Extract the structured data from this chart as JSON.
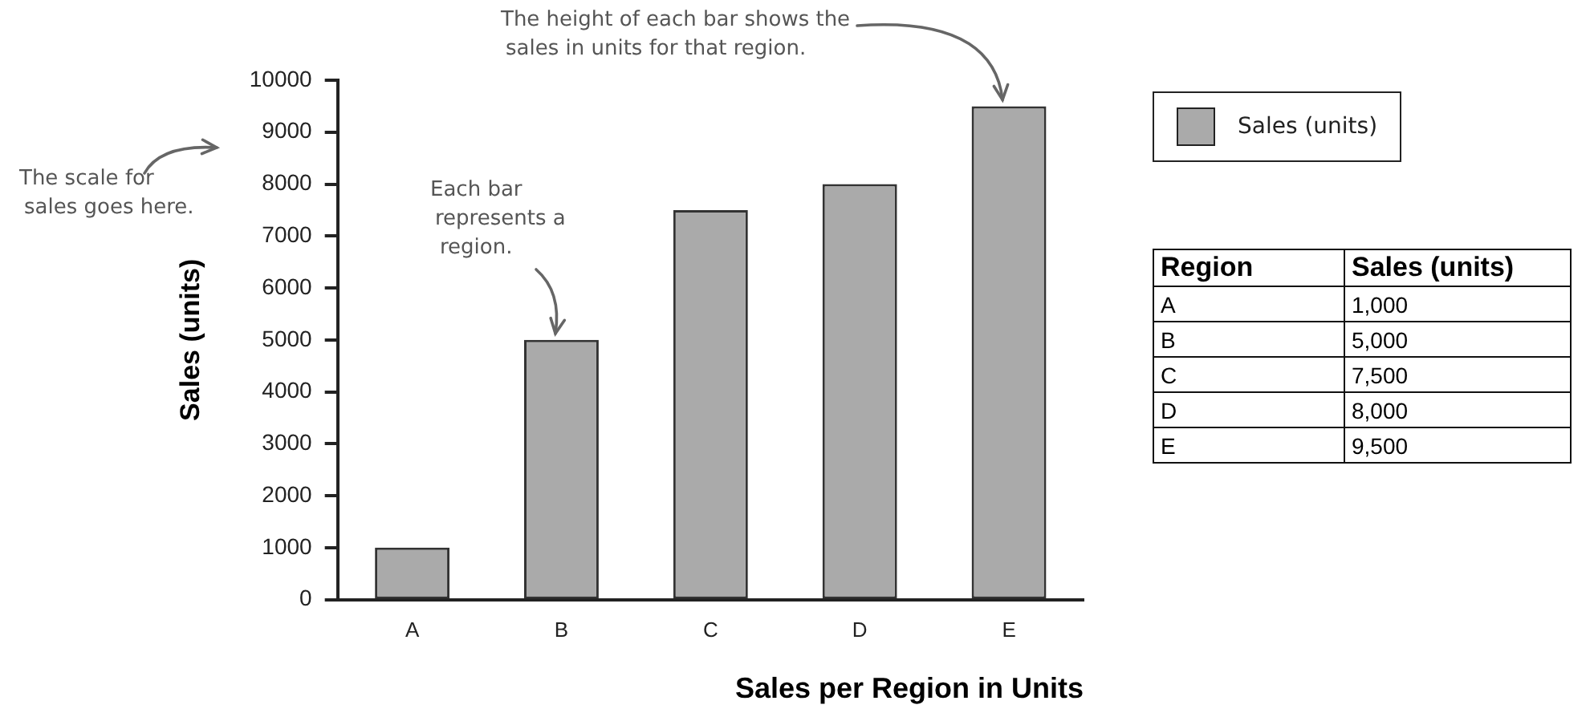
{
  "chart_data": [
    {
      "type": "bar",
      "xlabel": "Sales per Region in Units",
      "ylabel": "Sales (units)",
      "categories": [
        "A",
        "B",
        "C",
        "D",
        "E"
      ],
      "series": [
        {
          "name": "Sales (units)",
          "color": "#aaaaaa",
          "values": [
            1000,
            5000,
            7500,
            8000,
            9500
          ]
        }
      ],
      "ylim": [
        0,
        10000
      ],
      "yticks": [
        0,
        1000,
        2000,
        3000,
        4000,
        5000,
        6000,
        7000,
        8000,
        9000,
        10000
      ],
      "legend": "right",
      "annotations": [
        "The scale for sales goes here.",
        {
          "text": "Each bar represents a region.",
          "x": "B",
          "y": 5000
        },
        {
          "text": "The height of each bar shows the sales in units for that region.",
          "x": "E",
          "y": 9500
        }
      ]
    },
    {
      "type": "other",
      "annotations": [
        "Region",
        "Sales (units)",
        "A",
        "1,000",
        "B",
        "5,000",
        "C",
        "7,500",
        "D",
        "8,000",
        "E",
        "9,500"
      ]
    }
  ]
}
